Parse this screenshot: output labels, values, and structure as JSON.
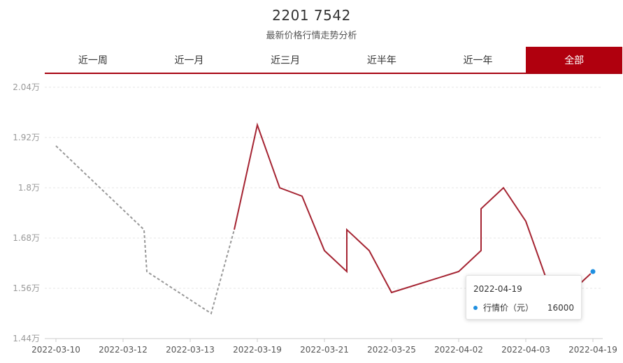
{
  "header": {
    "title": "2201 7542",
    "subtitle": "最新价格行情走势分析"
  },
  "tabs": [
    {
      "label": "近一周",
      "active": false
    },
    {
      "label": "近一月",
      "active": false
    },
    {
      "label": "近三月",
      "active": false
    },
    {
      "label": "近半年",
      "active": false
    },
    {
      "label": "近一年",
      "active": false
    },
    {
      "label": "全部",
      "active": true
    }
  ],
  "colors": {
    "accent": "#b0000e",
    "line": "#a52432",
    "dashed": "#999999",
    "tooltip_dot": "#1f8fe0"
  },
  "tooltip": {
    "date": "2022-04-19",
    "label": "行情价（元）",
    "value": "16000"
  },
  "chart_data": {
    "type": "line",
    "title": "",
    "xlabel": "",
    "ylabel": "",
    "ylim": [
      14400,
      20400
    ],
    "yticks": [
      {
        "value": 14400,
        "label": "1.44万"
      },
      {
        "value": 15600,
        "label": "1.56万"
      },
      {
        "value": 16800,
        "label": "1.68万"
      },
      {
        "value": 18000,
        "label": "1.8万"
      },
      {
        "value": 19200,
        "label": "1.92万"
      },
      {
        "value": 20400,
        "label": "2.04万"
      }
    ],
    "xticks": [
      "2022-03-10",
      "2022-03-12",
      "2022-03-13",
      "2022-03-19",
      "2022-03-21",
      "2022-03-25",
      "2022-04-02",
      "2022-04-03",
      "2022-04-19"
    ],
    "grid": true,
    "series": [
      {
        "style": "dashed",
        "points": [
          {
            "x": "2022-03-10",
            "y": 19000
          },
          {
            "x": "2022-03-12",
            "y": 17000
          },
          {
            "x": "2022-03-12",
            "y": 16000
          },
          {
            "x": "2022-03-13",
            "y": 15000
          },
          {
            "x": "2022-03-19",
            "y": 17000
          }
        ]
      },
      {
        "style": "solid",
        "points": [
          {
            "x": "2022-03-19",
            "y": 17000
          },
          {
            "x": "2022-03-19",
            "y": 19500
          },
          {
            "x": "2022-03-19",
            "y": 18000
          },
          {
            "x": "2022-03-21",
            "y": 17800
          },
          {
            "x": "2022-03-21",
            "y": 16500
          },
          {
            "x": "2022-03-21",
            "y": 16000
          },
          {
            "x": "2022-03-25",
            "y": 17000
          },
          {
            "x": "2022-03-25",
            "y": 16500
          },
          {
            "x": "2022-03-25",
            "y": 15500
          },
          {
            "x": "2022-04-02",
            "y": 16000
          },
          {
            "x": "2022-04-02",
            "y": 16500
          },
          {
            "x": "2022-04-02",
            "y": 17500
          },
          {
            "x": "2022-04-03",
            "y": 18000
          },
          {
            "x": "2022-04-03",
            "y": 17200
          },
          {
            "x": "2022-04-03",
            "y": 15700
          },
          {
            "x": "2022-04-19",
            "y": 15500
          },
          {
            "x": "2022-04-19",
            "y": 16000
          }
        ]
      }
    ],
    "highlight": {
      "x": "2022-04-19",
      "y": 16000
    }
  }
}
